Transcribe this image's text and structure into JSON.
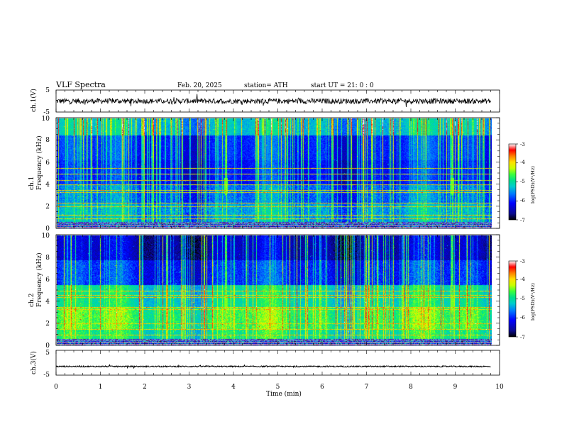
{
  "header": {
    "title": "VLF  Spectra",
    "date": "Feb. 20, 2025",
    "station": "station= ATH",
    "start": "start  UT  =    21: 0  : 0"
  },
  "colors": {
    "colormap": [
      "#000000",
      "#0a0a8c",
      "#0000ff",
      "#0077ff",
      "#00cccc",
      "#00e08a",
      "#3cff3c",
      "#c8ff00",
      "#ffe000",
      "#ff8000",
      "#ff0000",
      "#ffffff"
    ]
  },
  "chart_data": [
    {
      "type": "line",
      "name": "ch1-waveform",
      "ylabel": "ch.1(V)",
      "ylim": [
        -5,
        5
      ],
      "xlim": [
        0,
        10
      ],
      "yticks": [
        "5",
        "-5"
      ],
      "baseline": 0,
      "noise_amplitude": 1.2
    },
    {
      "type": "heatmap",
      "name": "ch1-spectrogram",
      "ylabel": "ch.1\nFrequency (kHz)",
      "ylim": [
        0,
        10
      ],
      "xlim": [
        0,
        9.8
      ],
      "yticks": [
        "0",
        "2",
        "4",
        "6",
        "8",
        "10"
      ],
      "colorbar": {
        "label": "log(PSD)(V²/Hz)",
        "range": [
          -7,
          -3
        ],
        "ticks": [
          "-3",
          "-4",
          "-5",
          "-6",
          "-7"
        ]
      },
      "lines_khz": [
        0.3,
        0.6,
        0.9,
        1.2,
        2.0,
        2.3,
        3.3,
        3.5,
        4.0,
        4.4,
        5.0,
        5.5
      ],
      "events_min": [
        3.8,
        8.9
      ]
    },
    {
      "type": "heatmap",
      "name": "ch2-spectrogram",
      "ylabel": "ch.2\nFrequency (kHz)",
      "ylim": [
        0,
        10
      ],
      "xlim": [
        0,
        9.8
      ],
      "yticks": [
        "0",
        "2",
        "4",
        "6",
        "8",
        "10"
      ],
      "colorbar": {
        "label": "log(PSD)(V²/Hz)",
        "range": [
          -7,
          -3
        ],
        "ticks": [
          "-3",
          "-4",
          "-5",
          "-6",
          "-7"
        ]
      },
      "lines_khz": [
        0.3,
        0.6,
        1.0,
        1.5,
        2.0,
        3.3,
        3.5,
        4.4,
        4.6,
        5.0
      ],
      "events_min": [
        3.8,
        8.9
      ]
    },
    {
      "type": "line",
      "name": "ch3-waveform",
      "ylabel": "ch.3(V)",
      "ylim": [
        -5,
        5
      ],
      "xlim": [
        0,
        10
      ],
      "yticks": [
        "5",
        "-5"
      ],
      "baseline": -1.5,
      "noise_amplitude": 0.25
    }
  ],
  "xaxis": {
    "label": "Time  (min)",
    "ticks": [
      "0",
      "1",
      "2",
      "3",
      "4",
      "5",
      "6",
      "7",
      "8",
      "9",
      "10"
    ],
    "range": [
      0,
      10
    ]
  }
}
